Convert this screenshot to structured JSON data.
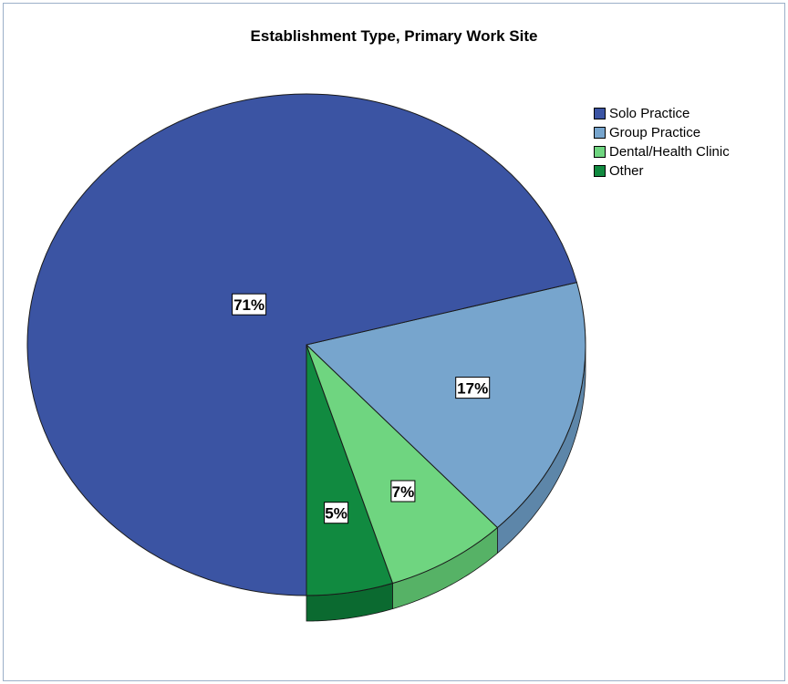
{
  "chart_data": {
    "type": "pie",
    "title": "Establishment Type, Primary Work Site",
    "slices": [
      {
        "label": "Solo Practice",
        "value": 71,
        "display": "71%",
        "color": "#3b54a3",
        "side_color": "#2d4286"
      },
      {
        "label": "Group Practice",
        "value": 17,
        "display": "17%",
        "color": "#77a5cd",
        "side_color": "#5d86a9"
      },
      {
        "label": "Dental/Health Clinic",
        "value": 7,
        "display": "7%",
        "color": "#6fd580",
        "side_color": "#56b266"
      },
      {
        "label": "Other",
        "value": 5,
        "display": "5%",
        "color": "#118a40",
        "side_color": "#0b6a30"
      }
    ],
    "legend_position": "top-right"
  }
}
